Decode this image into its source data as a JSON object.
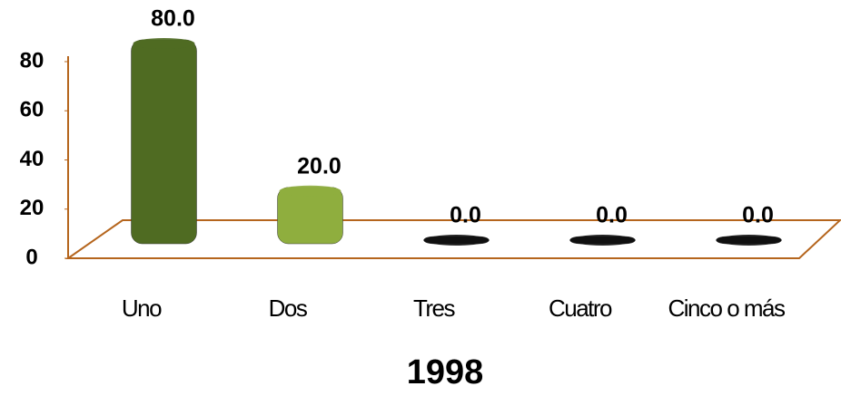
{
  "chart_data": {
    "type": "bar3d",
    "x_label": "1998",
    "categories": [
      "Uno",
      "Dos",
      "Tres",
      "Cuatro",
      "Cinco o más"
    ],
    "values": [
      80,
      20,
      0,
      0,
      0
    ],
    "value_labels": [
      "80.0",
      "20.0",
      "0.0",
      "0.0",
      "0.0"
    ],
    "colors": [
      "#4f6b22",
      "#8fae3e",
      "#111111",
      "#111111",
      "#111111"
    ],
    "ylim": [
      0,
      80
    ],
    "yticks": [
      0,
      20,
      40,
      60,
      80
    ],
    "axis_color": "#b5651d"
  }
}
